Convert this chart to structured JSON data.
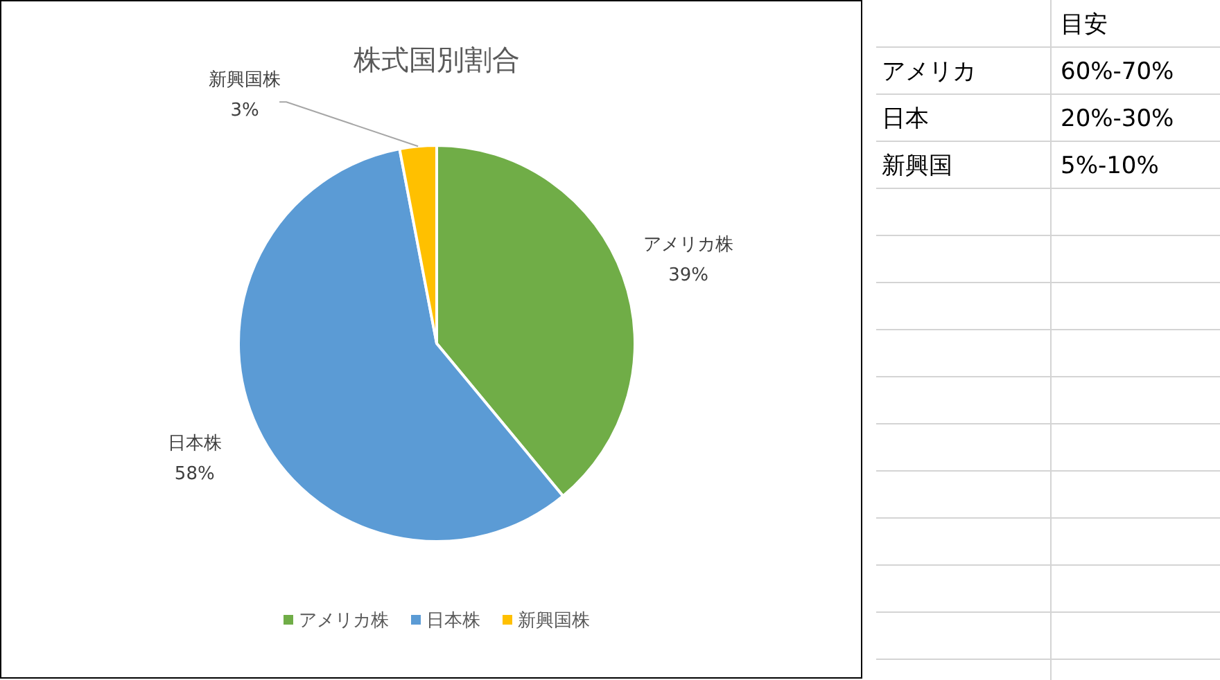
{
  "chart_data": [
    {
      "type": "pie",
      "title": "株式国別割合",
      "categories": [
        "アメリカ株",
        "日本株",
        "新興国株"
      ],
      "values": [
        39,
        58,
        3
      ],
      "colors": [
        "#70ad47",
        "#5b9bd5",
        "#ffc000"
      ],
      "value_labels": [
        "39%",
        "58%",
        "3%"
      ],
      "legend": "bottom"
    },
    {
      "type": "other",
      "annotations": [
        "目安",
        "アメリカ",
        "60%-70%",
        "日本",
        "20%-30%",
        "新興国",
        "5%-10%"
      ]
    }
  ]
}
